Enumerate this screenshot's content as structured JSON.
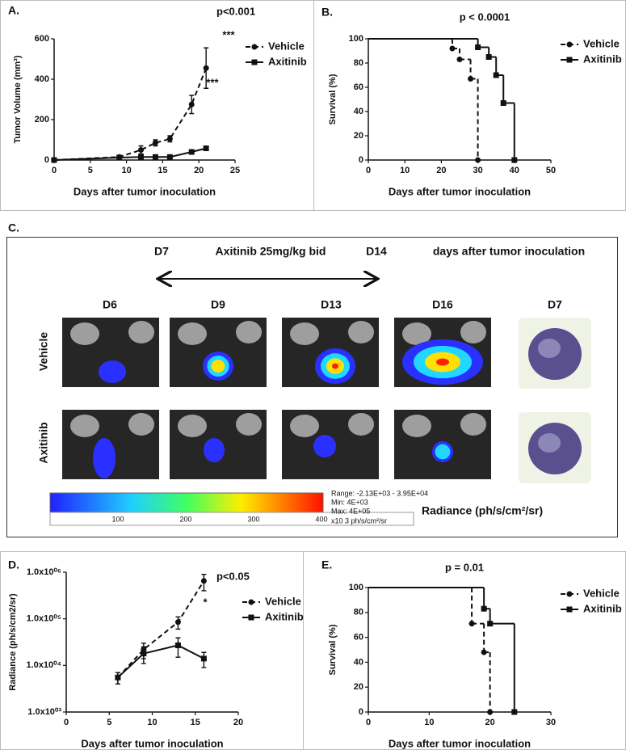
{
  "chart_data": [
    {
      "type": "line",
      "panel_label": "A.",
      "x_label": "Days after tumor inoculation",
      "y_label": "Tumor Volume (mm³)",
      "xlim": [
        0,
        25
      ],
      "xticks": [
        0,
        5,
        10,
        15,
        20,
        25
      ],
      "ylim": [
        0,
        600
      ],
      "yticks": [
        0,
        200,
        400,
        600
      ],
      "legend": "right",
      "annotations": [
        "p<0.001",
        "***",
        "***"
      ],
      "series": [
        {
          "name": "Vehicle",
          "color": "#111111",
          "line_style": "dashed",
          "marker": "circle",
          "x": [
            0,
            9,
            12,
            14,
            16,
            19,
            21
          ],
          "values": [
            0,
            15,
            50,
            85,
            105,
            275,
            455
          ],
          "errors": [
            0,
            5,
            20,
            15,
            15,
            45,
            100
          ]
        },
        {
          "name": "Axitinib",
          "color": "#111111",
          "line_style": "solid",
          "marker": "square",
          "x": [
            0,
            9,
            12,
            14,
            16,
            19,
            21
          ],
          "values": [
            0,
            12,
            15,
            15,
            15,
            40,
            58
          ],
          "errors": [
            0,
            3,
            4,
            4,
            4,
            8,
            8
          ]
        }
      ]
    },
    {
      "type": "step",
      "panel_label": "B.",
      "x_label": "Days after tumor inoculation",
      "y_label": "Survival (%)",
      "xlim": [
        0,
        50
      ],
      "xticks": [
        0,
        10,
        20,
        30,
        40,
        50
      ],
      "ylim": [
        0,
        100
      ],
      "yticks": [
        0,
        20,
        40,
        60,
        80,
        100
      ],
      "legend": "right",
      "annotations": [
        "p < 0.0001"
      ],
      "series": [
        {
          "name": "Vehicle",
          "color": "#111111",
          "line_style": "dashed",
          "marker": "circle",
          "x": [
            0,
            23,
            25,
            28,
            30
          ],
          "values": [
            100,
            92,
            83,
            67,
            0
          ]
        },
        {
          "name": "Axitinib",
          "color": "#111111",
          "line_style": "solid",
          "marker": "square",
          "x": [
            0,
            30,
            33,
            35,
            37,
            40
          ],
          "values": [
            100,
            93,
            85,
            70,
            47,
            0
          ]
        }
      ]
    },
    {
      "type": "line",
      "panel_label": "D.",
      "x_label": "Days after tumor inoculation",
      "y_label": "Radiance (ph/s/cm2/sr)",
      "xlim": [
        0,
        20
      ],
      "xticks": [
        0,
        5,
        10,
        15,
        20
      ],
      "ylim": [
        1000,
        1000000
      ],
      "log_y": true,
      "yticks": [
        {
          "value": 1000,
          "label": "1.0x10⁰³"
        },
        {
          "value": 10000,
          "label": "1.0x10⁰⁴"
        },
        {
          "value": 100000,
          "label": "1.0x10⁰⁵"
        },
        {
          "value": 1000000,
          "label": "1.0x10⁰⁶"
        }
      ],
      "legend": "right",
      "annotations": [
        "p<0.05",
        "*"
      ],
      "series": [
        {
          "name": "Vehicle",
          "color": "#111111",
          "line_style": "dashed",
          "marker": "circle",
          "x": [
            6,
            9,
            13,
            16
          ],
          "values": [
            5500,
            22000,
            85000,
            650000
          ],
          "errors": [
            1500,
            8000,
            25000,
            250000
          ]
        },
        {
          "name": "Axitinib",
          "color": "#111111",
          "line_style": "solid",
          "marker": "square",
          "x": [
            6,
            9,
            13,
            16
          ],
          "values": [
            5500,
            18000,
            27000,
            14000
          ],
          "errors": [
            1500,
            7000,
            12000,
            5000
          ]
        }
      ]
    },
    {
      "type": "step",
      "panel_label": "E.",
      "x_label": "Days after tumor inoculation",
      "y_label": "Survival (%)",
      "xlim": [
        0,
        30
      ],
      "xticks": [
        0,
        10,
        20,
        30
      ],
      "ylim": [
        0,
        100
      ],
      "yticks": [
        0,
        20,
        40,
        60,
        80,
        100
      ],
      "legend": "right",
      "annotations": [
        "p = 0.01"
      ],
      "series": [
        {
          "name": "Vehicle",
          "color": "#111111",
          "line_style": "dashed",
          "marker": "circle",
          "x": [
            0,
            17,
            19,
            20
          ],
          "values": [
            100,
            71,
            48,
            0
          ]
        },
        {
          "name": "Axitinib",
          "color": "#111111",
          "line_style": "solid",
          "marker": "square",
          "x": [
            0,
            19,
            20,
            24
          ],
          "values": [
            100,
            83,
            71,
            0
          ]
        }
      ]
    }
  ],
  "panel_c": {
    "label": "C.",
    "treatment_start": "D7",
    "treatment": "Axitinib 25mg/kg bid",
    "treatment_end": "D14",
    "timeline_note": "days after tumor inoculation",
    "columns": [
      "D6",
      "D9",
      "D13",
      "D16",
      "D7"
    ],
    "rows": [
      "Vehicle",
      "Axitinib"
    ],
    "colorbar": {
      "ticks": [
        100,
        200,
        300,
        400
      ],
      "range": "Range: -2.13E+03  -  3.95E+04",
      "min": "Min:     4E+03",
      "max": "Max:     4E+05",
      "units": "x10 3   ph/s/cm²/sr"
    },
    "legend_title": "Radiance (ph/s/cm²/sr)"
  }
}
